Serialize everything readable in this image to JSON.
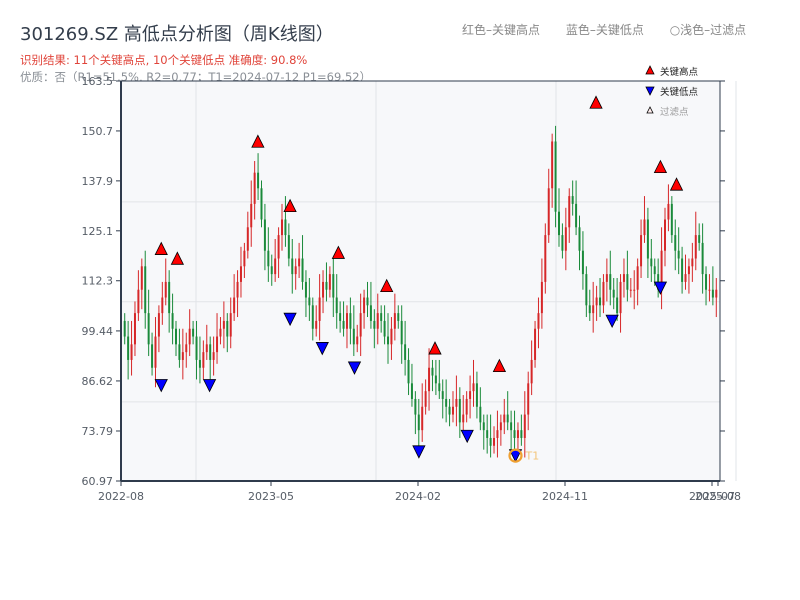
{
  "header": {
    "title": "301269.SZ 高低点分析图（周K线图）",
    "result_line": "识别结果: 11个关键高点, 10个关键低点  准确度: 90.8%",
    "quality_line": "优质：否（R1=51.5%, R2=0.77；T1=2024-07-12 P1=69.52）"
  },
  "color_legend": {
    "red": "红色–关键高点",
    "blue": "蓝色–关键低点",
    "light": "○浅色–过滤点"
  },
  "colors": {
    "up": "#d62728",
    "down": "#1a8a3a",
    "high_marker": "#ff0000",
    "low_marker": "#0000ff",
    "t1_ring": "#f0a030",
    "plot_bg": "#f7f8fa",
    "grid": "#e2e4e8",
    "axis": "#2f3b4c"
  },
  "chart_data": {
    "type": "candlestick",
    "title": "301269.SZ 高低点分析图（周K线图）",
    "xlabel": "",
    "ylabel": "",
    "ylim": [
      60.97,
      163.5
    ],
    "yticks": [
      60.97,
      73.79,
      86.62,
      99.44,
      112.3,
      125.1,
      137.9,
      150.7,
      163.5
    ],
    "xticks": [
      "2022-08",
      "2023-05",
      "2024-02",
      "2024-11",
      "2025-07",
      "2025-08"
    ],
    "grid": true,
    "legend": [
      "关键高点",
      "关键低点",
      "过滤点"
    ],
    "legend_position": "upper right",
    "key_highs": [
      {
        "date": "2022-09",
        "price": 118.5
      },
      {
        "date": "2022-10",
        "price": 116.0
      },
      {
        "date": "2023-03",
        "price": 146.0
      },
      {
        "date": "2023-05",
        "price": 129.5
      },
      {
        "date": "2023-08",
        "price": 117.5
      },
      {
        "date": "2023-11",
        "price": 109.0
      },
      {
        "date": "2024-02",
        "price": 93.0
      },
      {
        "date": "2024-06",
        "price": 88.5
      },
      {
        "date": "2024-12",
        "price": 156.0
      },
      {
        "date": "2025-04",
        "price": 139.5
      },
      {
        "date": "2025-05",
        "price": 135.0
      }
    ],
    "key_lows": [
      {
        "date": "2022-09",
        "price": 87.5
      },
      {
        "date": "2022-12",
        "price": 87.5
      },
      {
        "date": "2023-05",
        "price": 104.5
      },
      {
        "date": "2023-07",
        "price": 97.0
      },
      {
        "date": "2023-09",
        "price": 92.0
      },
      {
        "date": "2024-01",
        "price": 70.5
      },
      {
        "date": "2024-04",
        "price": 74.5
      },
      {
        "date": "2024-07",
        "price": 69.52
      },
      {
        "date": "2025-01",
        "price": 104.0
      },
      {
        "date": "2025-04",
        "price": 112.5
      }
    ],
    "annotation": {
      "label": "T1",
      "date": "2024-07-12",
      "price": 69.52
    },
    "closes": [
      98,
      92,
      96,
      104,
      110,
      116,
      104,
      96,
      90,
      98,
      104,
      108,
      112,
      104,
      100,
      96,
      92,
      94,
      96,
      100,
      98,
      92,
      90,
      94,
      96,
      92,
      94,
      98,
      100,
      102,
      98,
      104,
      108,
      112,
      116,
      120,
      126,
      132,
      140,
      136,
      128,
      120,
      116,
      114,
      118,
      124,
      128,
      124,
      118,
      114,
      116,
      118,
      112,
      108,
      106,
      100,
      102,
      108,
      112,
      110,
      114,
      108,
      104,
      102,
      100,
      104,
      100,
      96,
      98,
      104,
      108,
      106,
      102,
      100,
      104,
      102,
      98,
      96,
      100,
      104,
      102,
      96,
      92,
      86,
      82,
      78,
      74,
      80,
      84,
      90,
      88,
      86,
      84,
      82,
      80,
      78,
      80,
      82,
      76,
      78,
      82,
      84,
      86,
      80,
      76,
      74,
      72,
      70,
      72,
      74,
      76,
      78,
      76,
      74,
      72,
      74,
      72,
      78,
      86,
      92,
      100,
      104,
      112,
      124,
      136,
      148,
      130,
      124,
      120,
      126,
      134,
      132,
      126,
      120,
      114,
      106,
      104,
      106,
      108,
      106,
      112,
      114,
      110,
      108,
      104,
      112,
      114,
      110,
      110,
      110,
      116,
      124,
      128,
      118,
      116,
      114,
      110,
      120,
      128,
      132,
      124,
      120,
      118,
      112,
      114,
      116,
      118,
      124,
      122,
      114,
      110,
      110,
      108,
      110
    ],
    "x_range": [
      "2022-07",
      "2025-08"
    ]
  },
  "plot_legend": {
    "high": "关键高点",
    "low": "关键低点",
    "filtered": "过滤点"
  }
}
